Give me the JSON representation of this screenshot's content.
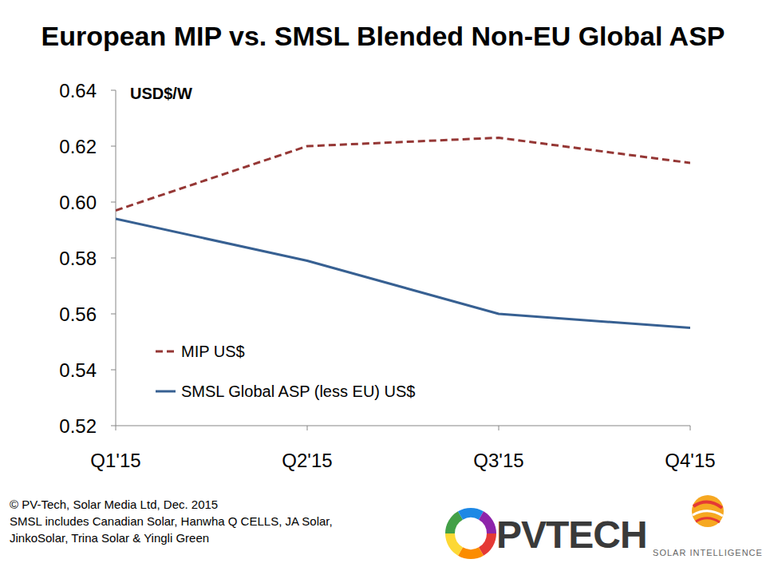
{
  "chart_data": {
    "type": "line",
    "title": "European MIP vs. SMSL Blended Non-EU Global ASP",
    "ylabel": "USD$/W",
    "categories": [
      "Q1'15",
      "Q2'15",
      "Q3'15",
      "Q4'15"
    ],
    "series": [
      {
        "name": "MIP US$",
        "color": "#953735",
        "line_style": "dashed",
        "values": [
          0.597,
          0.62,
          0.623,
          0.614
        ]
      },
      {
        "name": "SMSL Global ASP (less EU) US$",
        "color": "#376092",
        "line_style": "solid",
        "values": [
          0.594,
          0.579,
          0.56,
          0.555
        ]
      }
    ],
    "ylim": [
      0.52,
      0.64
    ],
    "yticks": [
      0.52,
      0.54,
      0.56,
      0.58,
      {
        "value": 0.6,
        "label": "0.60"
      },
      0.62,
      0.64
    ],
    "grid": false,
    "legend": "lower left",
    "annotations": [
      "© PV-Tech, Solar Media Ltd, Dec. 2015",
      "SMSL includes Canadian Solar, Hanwha Q CELLS, JA Solar,",
      "JinkoSolar, Trina Solar & Yingli Green",
      "PVTECH",
      "SOLAR INTELLIGENCE"
    ]
  }
}
